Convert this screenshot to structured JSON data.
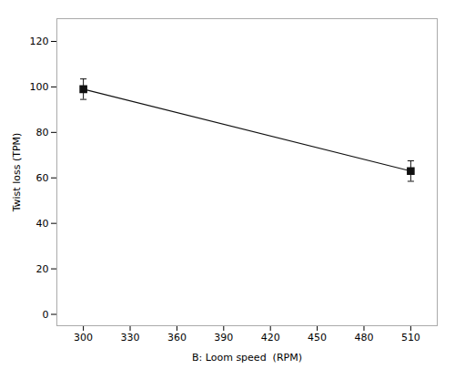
{
  "chart_data": {
    "type": "line",
    "x": [
      300,
      510
    ],
    "series": [
      {
        "color": "#111111",
        "marker": "square",
        "values": [
          99,
          63
        ],
        "yerr_lower": [
          4.5,
          4.5
        ],
        "yerr_upper": [
          4.5,
          4.5
        ]
      }
    ],
    "xlabel": "B: Loom speed  (RPM)",
    "ylabel": "Twist loss (TPM)",
    "xlim": [
      283,
      527
    ],
    "ylim": [
      -5,
      130
    ],
    "xticks": [
      300,
      330,
      360,
      390,
      420,
      450,
      480,
      510
    ],
    "yticks": [
      0,
      20,
      40,
      60,
      80,
      100,
      120
    ],
    "grid": false
  }
}
